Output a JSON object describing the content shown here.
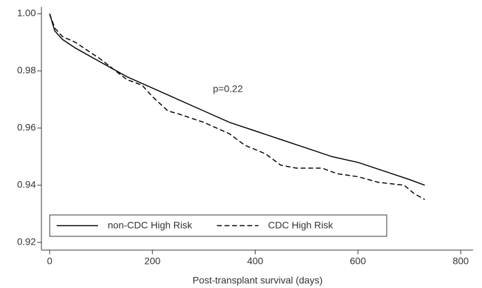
{
  "chart_data": {
    "type": "line",
    "xlabel": "Post-transplant survival (days)",
    "annotation": "p=0.22",
    "xlim": [
      -16,
      824
    ],
    "ylim": [
      0.9173,
      1.0024
    ],
    "xticks": [
      0,
      200,
      400,
      600,
      800
    ],
    "yticks": [
      0.92,
      0.94,
      0.96,
      0.98,
      {
        "value": 1,
        "label": "1.00"
      }
    ],
    "legend": "lower left",
    "series": [
      {
        "name": "non-CDC High Risk",
        "color": "#000000",
        "linestyle": "solid",
        "x": [
          0,
          10,
          25,
          50,
          100,
          150,
          200,
          250,
          300,
          350,
          400,
          450,
          500,
          550,
          600,
          650,
          700,
          730
        ],
        "values": [
          1.0,
          0.994,
          0.991,
          0.988,
          0.983,
          0.978,
          0.974,
          0.97,
          0.966,
          0.962,
          0.959,
          0.956,
          0.953,
          0.95,
          0.948,
          0.945,
          0.942,
          0.94
        ]
      },
      {
        "name": "CDC High Risk",
        "color": "#000000",
        "linestyle": "dashed",
        "x": [
          0,
          10,
          25,
          50,
          100,
          150,
          180,
          200,
          230,
          250,
          300,
          350,
          380,
          420,
          450,
          480,
          530,
          560,
          600,
          640,
          690,
          710,
          730
        ],
        "values": [
          1.0,
          0.995,
          0.992,
          0.99,
          0.984,
          0.977,
          0.975,
          0.971,
          0.966,
          0.965,
          0.962,
          0.958,
          0.954,
          0.951,
          0.947,
          0.946,
          0.946,
          0.944,
          0.943,
          0.941,
          0.94,
          0.937,
          0.935
        ]
      }
    ]
  }
}
